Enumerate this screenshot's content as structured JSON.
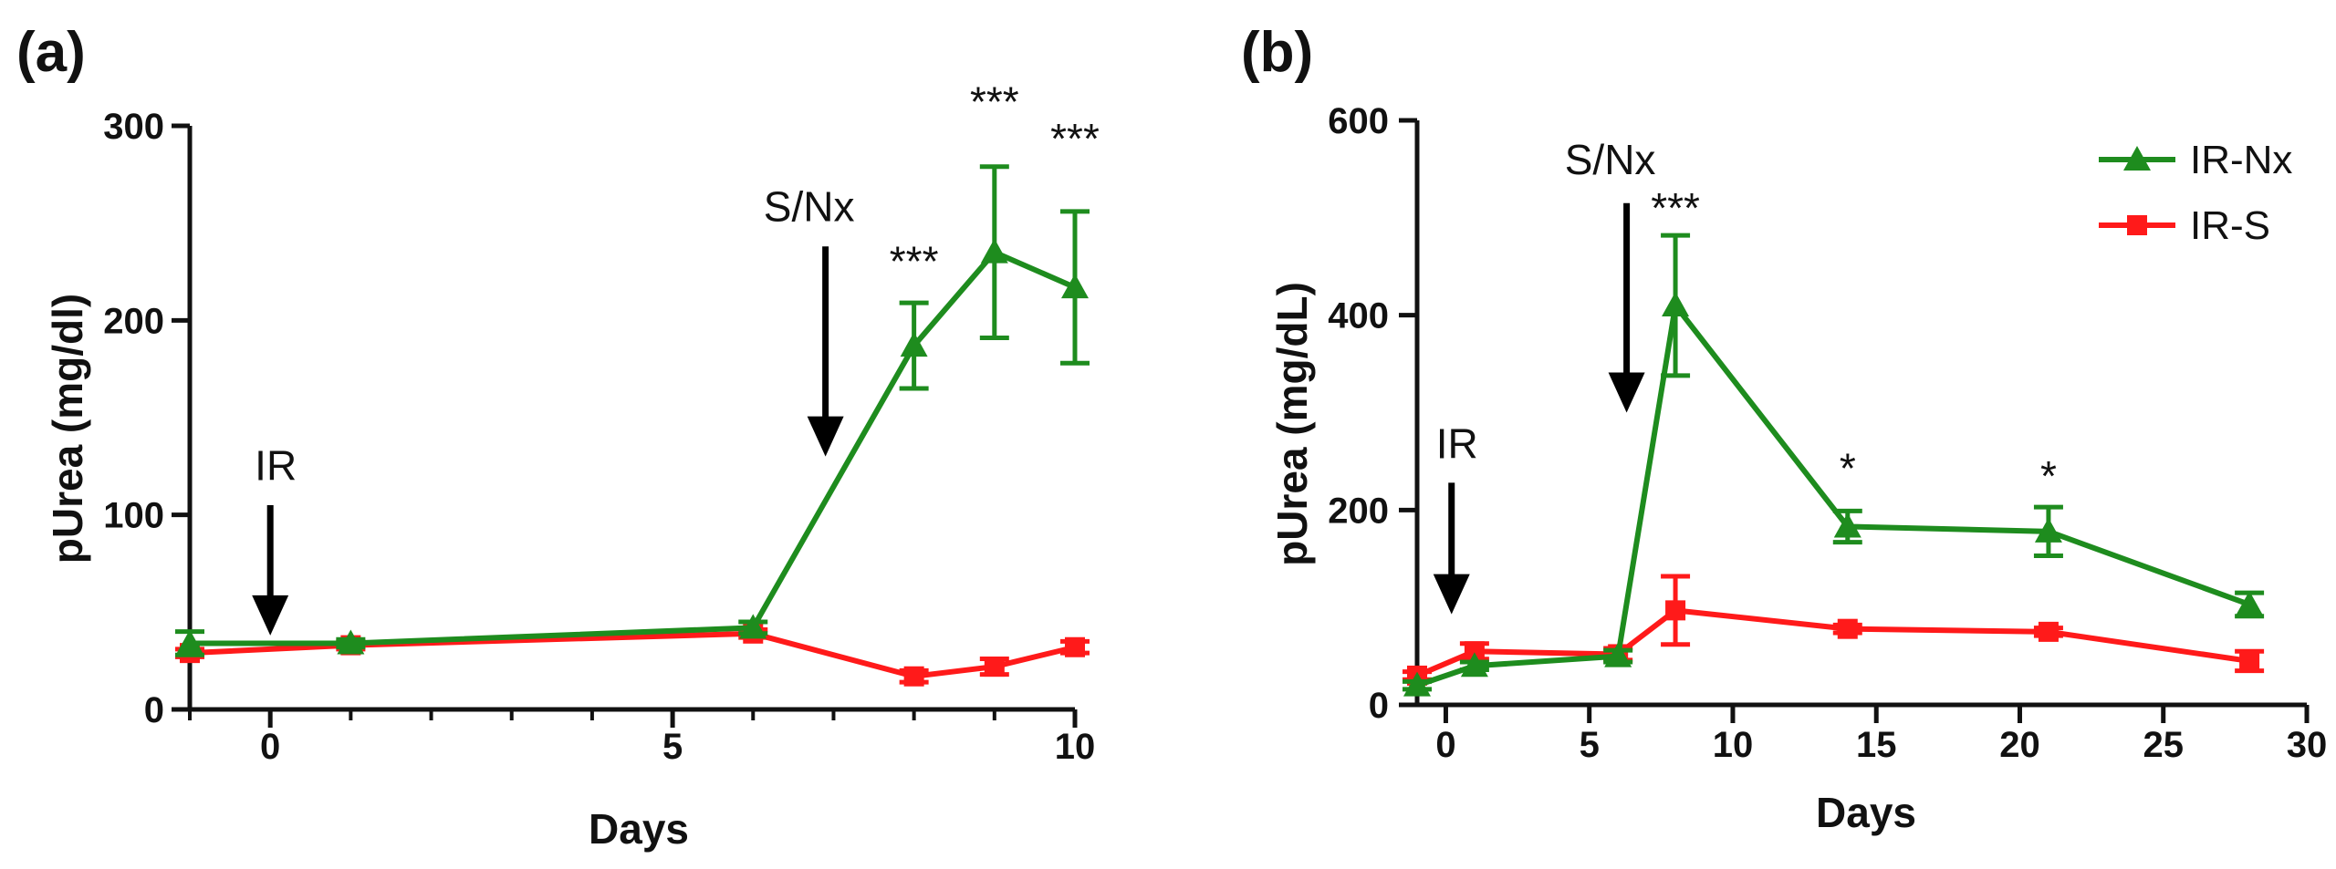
{
  "colors": {
    "ir_nx": "#1e8c1e",
    "ir_s": "#ff1a1a",
    "axis": "#111111"
  },
  "chart_data": [
    {
      "type": "line",
      "panel_label": "(a)",
      "xlabel": "Days",
      "ylabel": "pUrea (mg/dl)",
      "xlim": [
        -1,
        10
      ],
      "ylim": [
        0,
        300
      ],
      "xticks": [
        0,
        5,
        10
      ],
      "xtick_labels": [
        "0",
        "5",
        "10"
      ],
      "xminor": [
        -1,
        1,
        2,
        3,
        4,
        6,
        7,
        8,
        9
      ],
      "yticks": [
        0,
        100,
        200,
        300
      ],
      "ytick_labels": [
        "0",
        "100",
        "200",
        "300"
      ],
      "series": [
        {
          "name": "IR-Nx",
          "color": "#1e8c1e",
          "marker": "triangle",
          "x": [
            -1,
            1,
            6,
            8,
            9,
            10
          ],
          "y": [
            34,
            34,
            42,
            187,
            235,
            217
          ],
          "err": [
            6,
            2,
            3,
            22,
            44,
            39
          ]
        },
        {
          "name": "IR-S",
          "color": "#ff1a1a",
          "marker": "square",
          "x": [
            -1,
            1,
            6,
            8,
            9,
            10
          ],
          "y": [
            29,
            33,
            39,
            17,
            22,
            32
          ],
          "err": [
            2,
            2,
            2,
            3,
            4,
            3
          ]
        }
      ],
      "arrows": [
        {
          "label": "IR",
          "x": 0,
          "y_top": 105,
          "y_bottom": 38,
          "label_y": 118
        },
        {
          "label": "S/Nx",
          "x": 6.9,
          "y_top": 238,
          "y_bottom": 130,
          "label_y": 251
        }
      ],
      "significance": [
        {
          "label": "***",
          "x": 8,
          "y": 223
        },
        {
          "label": "***",
          "x": 9,
          "y": 305
        },
        {
          "label": "***",
          "x": 10,
          "y": 286
        }
      ]
    },
    {
      "type": "line",
      "panel_label": "(b)",
      "xlabel": "Days",
      "ylabel": "pUrea (mg/dL)",
      "xlim": [
        -1,
        30
      ],
      "ylim": [
        0,
        600
      ],
      "xticks": [
        0,
        5,
        10,
        15,
        20,
        25,
        30
      ],
      "xtick_labels": [
        "0",
        "5",
        "10",
        "15",
        "20",
        "25",
        "30"
      ],
      "xminor": [],
      "yticks": [
        0,
        200,
        400,
        600
      ],
      "ytick_labels": [
        "0",
        "200",
        "400",
        "600"
      ],
      "legend": {
        "position": "top-right",
        "entries": [
          "IR-Nx",
          "IR-S"
        ]
      },
      "series": [
        {
          "name": "IR-Nx",
          "color": "#1e8c1e",
          "marker": "triangle",
          "x": [
            -1,
            1,
            6,
            8,
            14,
            21,
            28
          ],
          "y": [
            20,
            40,
            50,
            410,
            183,
            178,
            103
          ],
          "err": [
            4,
            4,
            6,
            72,
            16,
            25,
            12
          ]
        },
        {
          "name": "IR-S",
          "color": "#ff1a1a",
          "marker": "square",
          "x": [
            -1,
            1,
            6,
            8,
            14,
            21,
            28
          ],
          "y": [
            30,
            55,
            52,
            97,
            78,
            75,
            45
          ],
          "err": [
            4,
            8,
            6,
            35,
            4,
            4,
            10
          ]
        }
      ],
      "arrows": [
        {
          "label": "IR",
          "x": 0.2,
          "y_top": 228,
          "y_bottom": 93,
          "label_y": 253
        },
        {
          "label": "S/Nx",
          "x": 6.3,
          "y_top": 515,
          "y_bottom": 300,
          "label_y": 545
        }
      ],
      "significance": [
        {
          "label": "***",
          "x": 8,
          "y": 495
        },
        {
          "label": "*",
          "x": 14,
          "y": 228
        },
        {
          "label": "*",
          "x": 21,
          "y": 220
        }
      ]
    }
  ]
}
